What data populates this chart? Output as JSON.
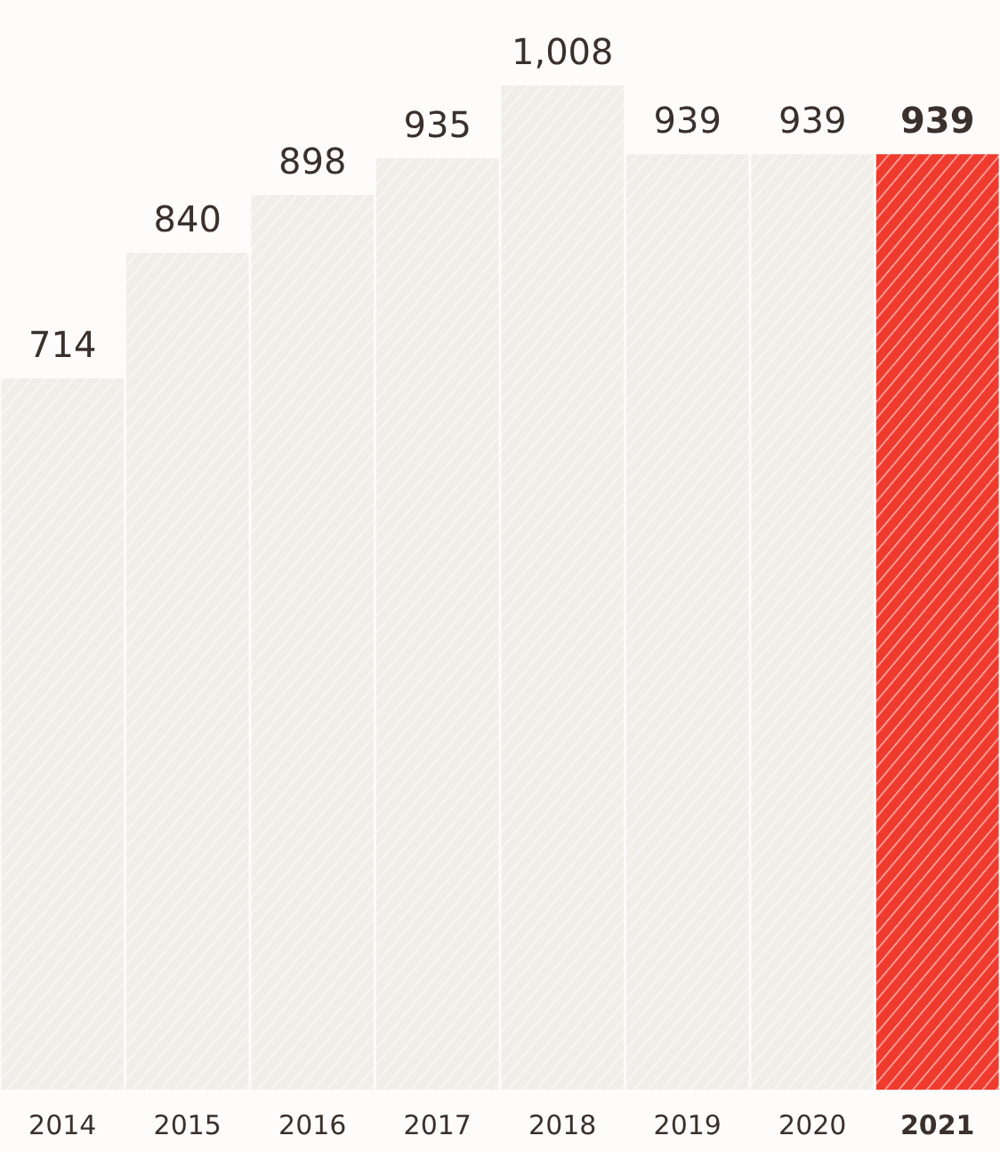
{
  "chart_data": {
    "type": "bar",
    "categories": [
      "2014",
      "2015",
      "2016",
      "2017",
      "2018",
      "2019",
      "2020",
      "2021"
    ],
    "values": [
      714,
      840,
      898,
      935,
      1008,
      939,
      939,
      939
    ],
    "colors": [
      "#f1eee9",
      "#f1eee9",
      "#f1eee9",
      "#f1eee9",
      "#f1eee9",
      "#f1eee9",
      "#f1eee9",
      "#ef3a2e"
    ],
    "value_labels": [
      "714",
      "840",
      "898",
      "935",
      "1,008",
      "939",
      "939",
      "939"
    ]
  }
}
